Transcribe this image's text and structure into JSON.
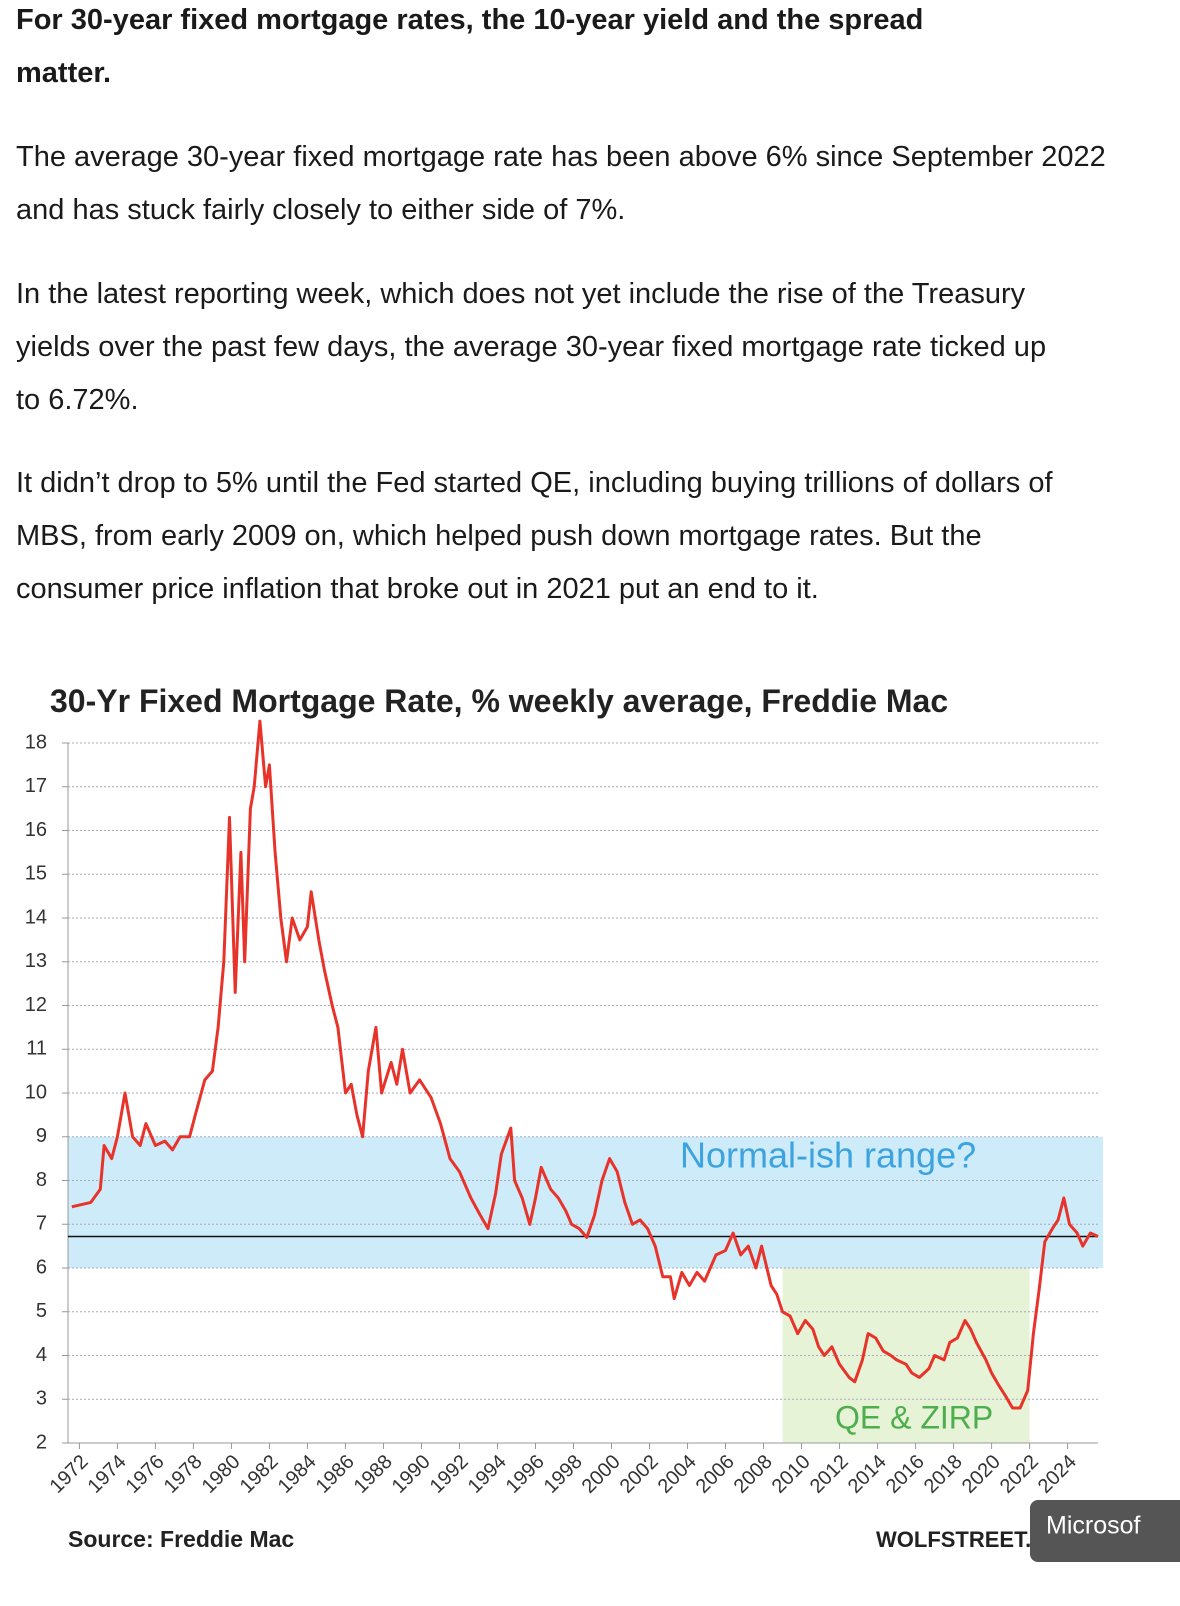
{
  "paragraphs": [
    "For 30-year fixed mortgage rates, the 10-year yield and the spread matter.",
    "The average 30-year fixed mortgage rate has been above 6% since September 2022 and has stuck fairly closely to either side of 7%.",
    "In the latest reporting week, which does not yet include the rise of the Treasury yields over the past few days, the average 30-year fixed mortgage rate ticked up to 6.72%.",
    "It didn’t drop to 5% until the Fed started QE, including buying trillions of dollars of MBS, from early 2009 on, which helped push down mortgage rates. But the consumer price inflation that broke out in 2021 put an end to it."
  ],
  "chart_data": {
    "type": "line",
    "title": "30-Yr Fixed Mortgage Rate, % weekly average, Freddie Mac",
    "source": "Source: Freddie Mac",
    "credit": "WOLFSTREET.com",
    "color": "#e8332a",
    "x": [
      1971.6,
      1972.6,
      1973.1,
      1973.3,
      1973.7,
      1974.0,
      1974.4,
      1974.8,
      1975.2,
      1975.5,
      1976.0,
      1976.5,
      1976.9,
      1977.3,
      1977.8,
      1978.1,
      1978.6,
      1979.0,
      1979.3,
      1979.6,
      1979.9,
      1980.2,
      1980.5,
      1980.7,
      1981.0,
      1981.2,
      1981.5,
      1981.8,
      1982.0,
      1982.3,
      1982.6,
      1982.9,
      1983.2,
      1983.6,
      1984.0,
      1984.2,
      1984.6,
      1984.9,
      1985.3,
      1985.6,
      1986.0,
      1986.3,
      1986.6,
      1986.9,
      1987.2,
      1987.6,
      1987.9,
      1988.4,
      1988.7,
      1989.0,
      1989.4,
      1989.9,
      1990.5,
      1991.0,
      1991.5,
      1992.0,
      1992.6,
      1993.1,
      1993.5,
      1993.9,
      1994.2,
      1994.7,
      1994.9,
      1995.3,
      1995.7,
      1996.0,
      1996.3,
      1996.8,
      1997.2,
      1997.6,
      1997.9,
      1998.3,
      1998.7,
      1999.1,
      1999.5,
      1999.9,
      2000.3,
      2000.7,
      2001.1,
      2001.5,
      2001.9,
      2002.3,
      2002.7,
      2003.1,
      2003.3,
      2003.7,
      2004.1,
      2004.5,
      2004.9,
      2005.5,
      2006.0,
      2006.4,
      2006.8,
      2007.2,
      2007.6,
      2007.9,
      2008.4,
      2008.7,
      2009.0,
      2009.4,
      2009.8,
      2010.2,
      2010.6,
      2010.9,
      2011.2,
      2011.6,
      2012.0,
      2012.5,
      2012.8,
      2013.2,
      2013.5,
      2013.9,
      2014.3,
      2014.7,
      2015.0,
      2015.5,
      2015.8,
      2016.2,
      2016.7,
      2017.0,
      2017.5,
      2017.8,
      2018.2,
      2018.6,
      2018.9,
      2019.2,
      2019.7,
      2020.0,
      2020.4,
      2020.7,
      2021.1,
      2021.5,
      2021.9,
      2022.2,
      2022.5,
      2022.8,
      2023.2,
      2023.5,
      2023.8,
      2024.1,
      2024.5,
      2024.8,
      2025.2,
      2025.6
    ],
    "values": [
      7.4,
      7.5,
      7.8,
      8.8,
      8.5,
      9.0,
      10.0,
      9.0,
      8.8,
      9.3,
      8.8,
      8.9,
      8.7,
      9.0,
      9.0,
      9.5,
      10.3,
      10.5,
      11.5,
      13.0,
      16.3,
      12.3,
      15.5,
      13.0,
      16.5,
      17.0,
      18.5,
      17.0,
      17.5,
      15.5,
      14.0,
      13.0,
      14.0,
      13.5,
      13.8,
      14.6,
      13.5,
      12.8,
      12.0,
      11.5,
      10.0,
      10.2,
      9.5,
      9.0,
      10.5,
      11.5,
      10.0,
      10.7,
      10.2,
      11.0,
      10.0,
      10.3,
      9.9,
      9.3,
      8.5,
      8.2,
      7.6,
      7.2,
      6.9,
      7.7,
      8.6,
      9.2,
      8.0,
      7.6,
      7.0,
      7.6,
      8.3,
      7.8,
      7.6,
      7.3,
      7.0,
      6.9,
      6.7,
      7.2,
      8.0,
      8.5,
      8.2,
      7.5,
      7.0,
      7.1,
      6.9,
      6.5,
      5.8,
      5.8,
      5.3,
      5.9,
      5.6,
      5.9,
      5.7,
      6.3,
      6.4,
      6.8,
      6.3,
      6.5,
      6.0,
      6.5,
      5.6,
      5.4,
      5.0,
      4.9,
      4.5,
      4.8,
      4.6,
      4.2,
      4.0,
      4.2,
      3.8,
      3.5,
      3.4,
      3.9,
      4.5,
      4.4,
      4.1,
      4.0,
      3.9,
      3.8,
      3.6,
      3.5,
      3.7,
      4.0,
      3.9,
      4.3,
      4.4,
      4.8,
      4.6,
      4.3,
      3.9,
      3.6,
      3.3,
      3.1,
      2.8,
      2.8,
      3.2,
      4.5,
      5.5,
      6.6,
      6.9,
      7.1,
      7.6,
      7.0,
      6.8,
      6.5,
      6.8,
      6.72
    ],
    "xlim": [
      1971.4,
      2025.6
    ],
    "xticks": [
      1972,
      1974,
      1976,
      1978,
      1980,
      1982,
      1984,
      1986,
      1988,
      1990,
      1992,
      1994,
      1996,
      1998,
      2000,
      2002,
      2004,
      2006,
      2008,
      2010,
      2012,
      2014,
      2016,
      2018,
      2020,
      2022,
      2024
    ],
    "ylim": [
      2,
      18
    ],
    "yticks": [
      2,
      3,
      4,
      5,
      6,
      7,
      8,
      9,
      10,
      11,
      12,
      13,
      14,
      15,
      16,
      17,
      18
    ],
    "grid": true,
    "reference_line": 6.72,
    "bands": [
      {
        "label": "Normal-ish range?",
        "y": [
          6,
          9
        ],
        "color": "#c4e8f8",
        "label_color": "#3ca3e0"
      },
      {
        "label": "QE & ZIRP",
        "x": [
          2009,
          2022
        ],
        "y": [
          2,
          6
        ],
        "color": "#e2f1cf",
        "label_color": "#4cae4c"
      }
    ]
  },
  "overlay": {
    "label": "Microsof"
  }
}
